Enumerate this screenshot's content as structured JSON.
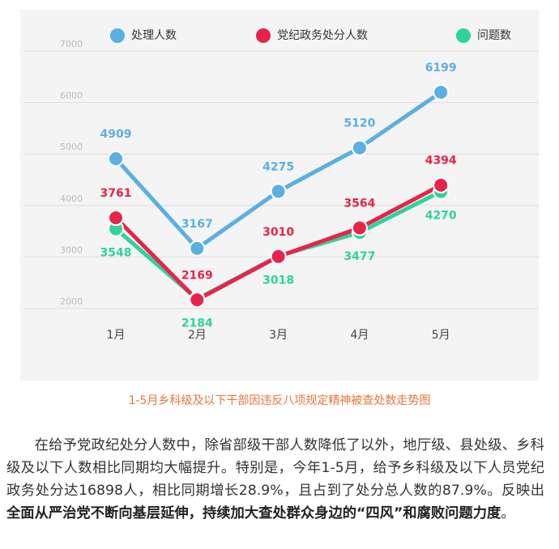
{
  "chart_data": {
    "type": "line",
    "categories": [
      "1月",
      "2月",
      "3月",
      "4月",
      "5月"
    ],
    "series": [
      {
        "name": "处理人数",
        "color": "#5aafe3",
        "values": [
          4909,
          3167,
          4275,
          5120,
          6199
        ]
      },
      {
        "name": "党纪政务处分人数",
        "color": "#e8234a",
        "values": [
          3761,
          2169,
          3010,
          3564,
          4394
        ]
      },
      {
        "name": "问题数",
        "color": "#2ed39a",
        "values": [
          3548,
          2184,
          3018,
          3477,
          4270
        ]
      }
    ],
    "ylim": [
      2000,
      7000
    ],
    "yticks": [
      2000,
      3000,
      4000,
      5000,
      6000,
      7000
    ],
    "grid": true,
    "legend": "top"
  },
  "caption": "1-5月乡科级及以下干部因违反八项规定精神被查处数走势图",
  "paragraph": [
    "在给予党政纪处分人数中，除省部级干部人数降低了以外，地厅级、县处级、乡科级及以下人数相比同期均大幅提升。特别是，今年1-5月，给予乡科级及以下人员党纪政务处分达16898人，相比同期增长28.9%，且占到了处分总人数的87.9%。反映出",
    "全面从严治党不断向基层延伸，持续加大查处群众身边的“四风”和腐败问题力度",
    "。"
  ]
}
